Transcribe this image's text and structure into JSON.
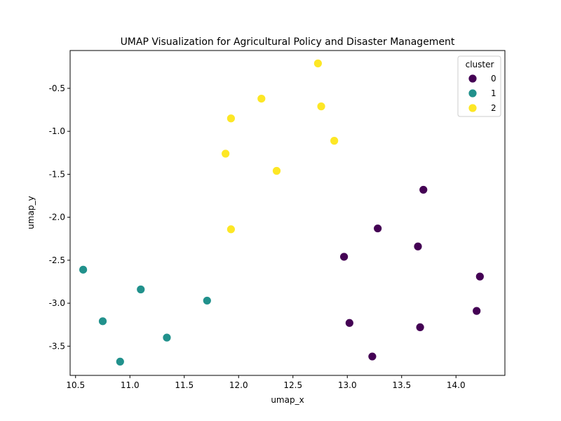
{
  "chart_data": {
    "type": "scatter",
    "title": "UMAP Visualization for Agricultural Policy and Disaster Management",
    "xlabel": "umap_x",
    "ylabel": "umap_y",
    "xlim": [
      10.45,
      14.45
    ],
    "ylim": [
      -3.84,
      -0.06
    ],
    "xticks": [
      "10.5",
      "11.0",
      "11.5",
      "12.0",
      "12.5",
      "13.0",
      "13.5",
      "14.0"
    ],
    "yticks": [
      "-0.5",
      "-1.0",
      "-1.5",
      "-2.0",
      "-2.5",
      "-3.0",
      "-3.5"
    ],
    "xtick_values": [
      10.5,
      11.0,
      11.5,
      12.0,
      12.5,
      13.0,
      13.5,
      14.0
    ],
    "ytick_values": [
      -0.5,
      -1.0,
      -1.5,
      -2.0,
      -2.5,
      -3.0,
      -3.5
    ],
    "grid": false,
    "legend": {
      "title": "cluster",
      "placement": "top-right"
    },
    "series": [
      {
        "name": "0",
        "color": "#440154",
        "x": [
          13.7,
          13.28,
          13.65,
          12.97,
          14.22,
          14.19,
          13.02,
          13.67,
          13.23
        ],
        "y": [
          -1.68,
          -2.13,
          -2.34,
          -2.46,
          -2.69,
          -3.09,
          -3.23,
          -3.28,
          -3.62
        ]
      },
      {
        "name": "1",
        "color": "#21918c",
        "x": [
          10.57,
          11.1,
          11.71,
          10.75,
          11.34,
          10.91
        ],
        "y": [
          -2.61,
          -2.84,
          -2.97,
          -3.21,
          -3.4,
          -3.68
        ]
      },
      {
        "name": "2",
        "color": "#fde725",
        "x": [
          12.73,
          12.21,
          12.76,
          11.93,
          12.88,
          11.88,
          12.35,
          11.93
        ],
        "y": [
          -0.21,
          -0.62,
          -0.71,
          -0.85,
          -1.11,
          -1.26,
          -1.46,
          -2.14
        ]
      }
    ]
  }
}
